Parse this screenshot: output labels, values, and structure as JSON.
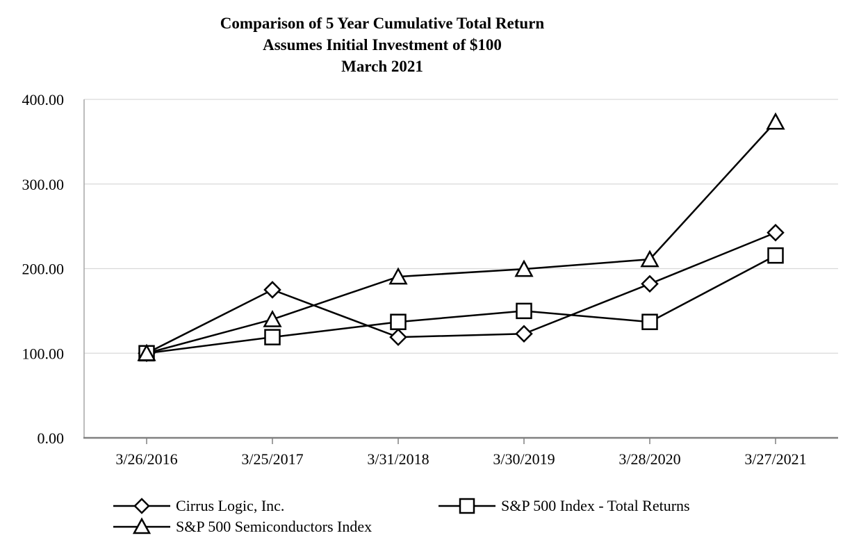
{
  "title": {
    "line1": "Comparison of 5 Year Cumulative Total Return",
    "line2": "Assumes Initial Investment of $100",
    "line3": "March 2021"
  },
  "chart_data": {
    "type": "line",
    "categories": [
      "3/26/2016",
      "3/25/2017",
      "3/31/2018",
      "3/30/2019",
      "3/28/2020",
      "3/27/2021"
    ],
    "series": [
      {
        "name": "Cirrus Logic, Inc.",
        "marker": "diamond",
        "values": [
          100.0,
          175.0,
          119.0,
          123.0,
          182.0,
          242.5
        ]
      },
      {
        "name": "S&P 500 Index - Total Returns",
        "marker": "square",
        "values": [
          100.0,
          119.0,
          137.0,
          150.0,
          137.0,
          215.5
        ]
      },
      {
        "name": "S&P 500 Semiconductors Index",
        "marker": "triangle",
        "values": [
          100.0,
          140.0,
          190.5,
          199.5,
          211.0,
          373.5
        ]
      }
    ],
    "ylim": [
      0,
      400
    ],
    "y_ticks": [
      {
        "value": 400,
        "label": "400.00"
      },
      {
        "value": 300,
        "label": "300.00"
      },
      {
        "value": 200,
        "label": "200.00"
      },
      {
        "value": 100,
        "label": "100.00"
      },
      {
        "value": 0,
        "label": "0.00"
      }
    ],
    "grid": true,
    "legend_position": "bottom",
    "line_color": "#000000",
    "marker_fill": "#ffffff",
    "axis_color": "#808080",
    "y_axis_color": "#a6a6a6",
    "gridline_color": "#d9d9d9",
    "xlabel": "",
    "ylabel": ""
  }
}
